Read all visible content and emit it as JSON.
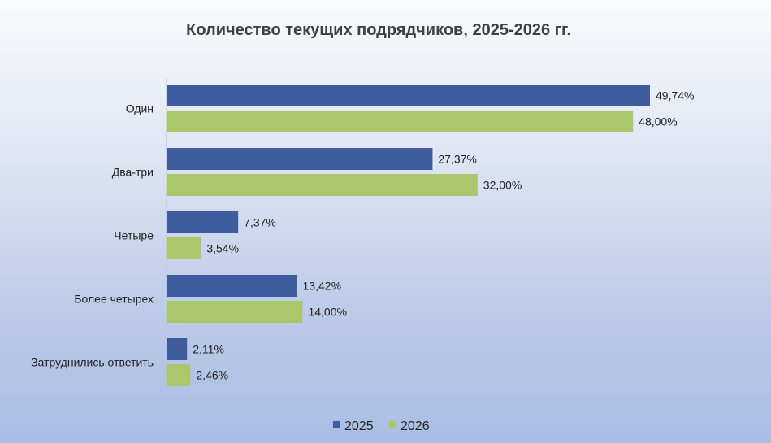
{
  "chart_data": {
    "type": "bar",
    "orientation": "horizontal",
    "title": "Количество текущих подрядчиков, 2025-2026 гг.",
    "categories": [
      "Один",
      "Два-три",
      "Четыре",
      "Более четырех",
      "Затруднились ответить"
    ],
    "series": [
      {
        "name": "2025",
        "color": "#3f5c9e",
        "values": [
          49.74,
          27.37,
          7.37,
          13.42,
          2.11
        ],
        "labels": [
          "49,74%",
          "27,37%",
          "7,37%",
          "13,42%",
          "2,11%"
        ]
      },
      {
        "name": "2026",
        "color": "#a9c76b",
        "values": [
          48.0,
          32.0,
          3.54,
          14.0,
          2.46
        ],
        "labels": [
          "48,00%",
          "32,00%",
          "3,54%",
          "14,00%",
          "2,46%"
        ]
      }
    ],
    "xlim": [
      0,
      50
    ],
    "grid": false,
    "legend": "bottom-center",
    "xlabel": "",
    "ylabel": ""
  }
}
